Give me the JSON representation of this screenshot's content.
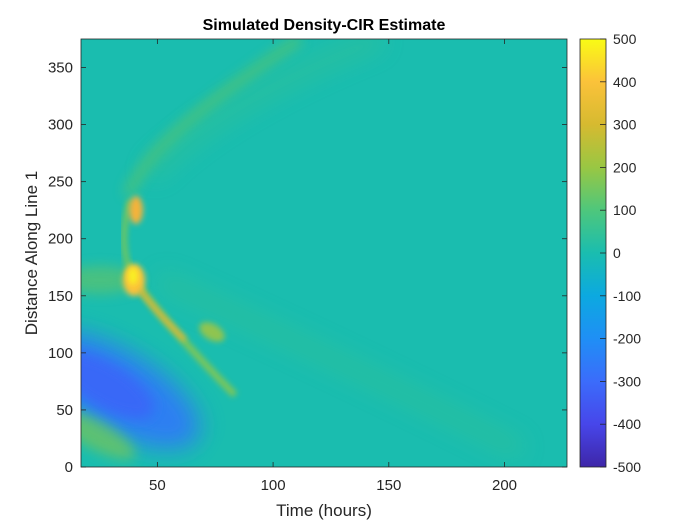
{
  "chart_data": {
    "type": "heatmap",
    "title": "Simulated Density-CIR Estimate",
    "xlabel": "Time (hours)",
    "ylabel": "Distance Along Line 1",
    "xlim": [
      17,
      227
    ],
    "ylim": [
      0,
      375
    ],
    "x_ticks": [
      50,
      100,
      150,
      200
    ],
    "y_ticks": [
      0,
      50,
      100,
      150,
      200,
      250,
      300,
      350
    ],
    "colorbar": {
      "range": [
        -500,
        500
      ],
      "ticks": [
        500,
        400,
        300,
        200,
        100,
        0,
        -100,
        -200,
        -300,
        -400,
        -500
      ],
      "colormap": "parula",
      "placement": "right"
    },
    "background_value": 0,
    "features": [
      {
        "t": 39,
        "d": 168,
        "value": 480
      },
      {
        "t": 40,
        "d": 225,
        "value": 330
      },
      {
        "t": 46,
        "d": 140,
        "value": 300
      },
      {
        "t": 75,
        "d": 118,
        "value": 180
      },
      {
        "t": 33,
        "d": 62,
        "value": -220
      },
      {
        "t": 24,
        "d": 30,
        "value": 150
      },
      {
        "t": 26,
        "d": 160,
        "value": 100
      }
    ],
    "grid": false
  },
  "colors": {
    "background": "#1abdaf",
    "axes": "#262626"
  }
}
